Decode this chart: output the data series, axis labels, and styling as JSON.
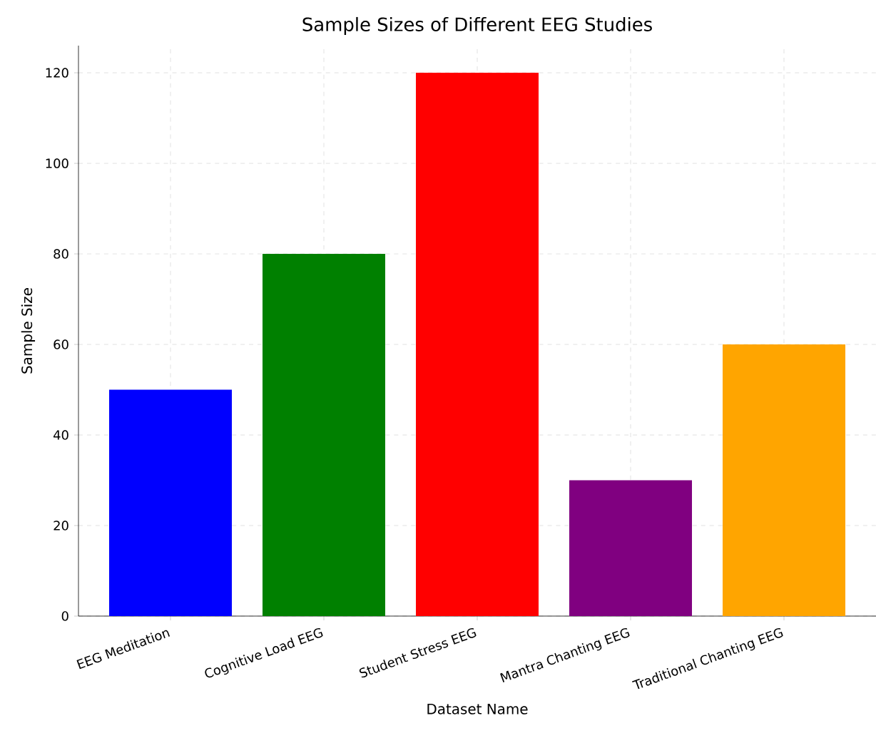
{
  "chart_data": {
    "type": "bar",
    "title": "Sample Sizes of Different EEG Studies",
    "xlabel": "Dataset Name",
    "ylabel": "Sample Size",
    "categories": [
      "EEG Meditation",
      "Cognitive Load EEG",
      "Student Stress EEG",
      "Mantra Chanting EEG",
      "Traditional Chanting EEG"
    ],
    "values": [
      50,
      80,
      120,
      30,
      60
    ],
    "colors": [
      "#0000ff",
      "#008000",
      "#ff0000",
      "#800080",
      "#ffa500"
    ],
    "ylim": [
      0,
      126
    ],
    "yticks": [
      0,
      20,
      40,
      60,
      80,
      100,
      120
    ],
    "grid": true
  }
}
